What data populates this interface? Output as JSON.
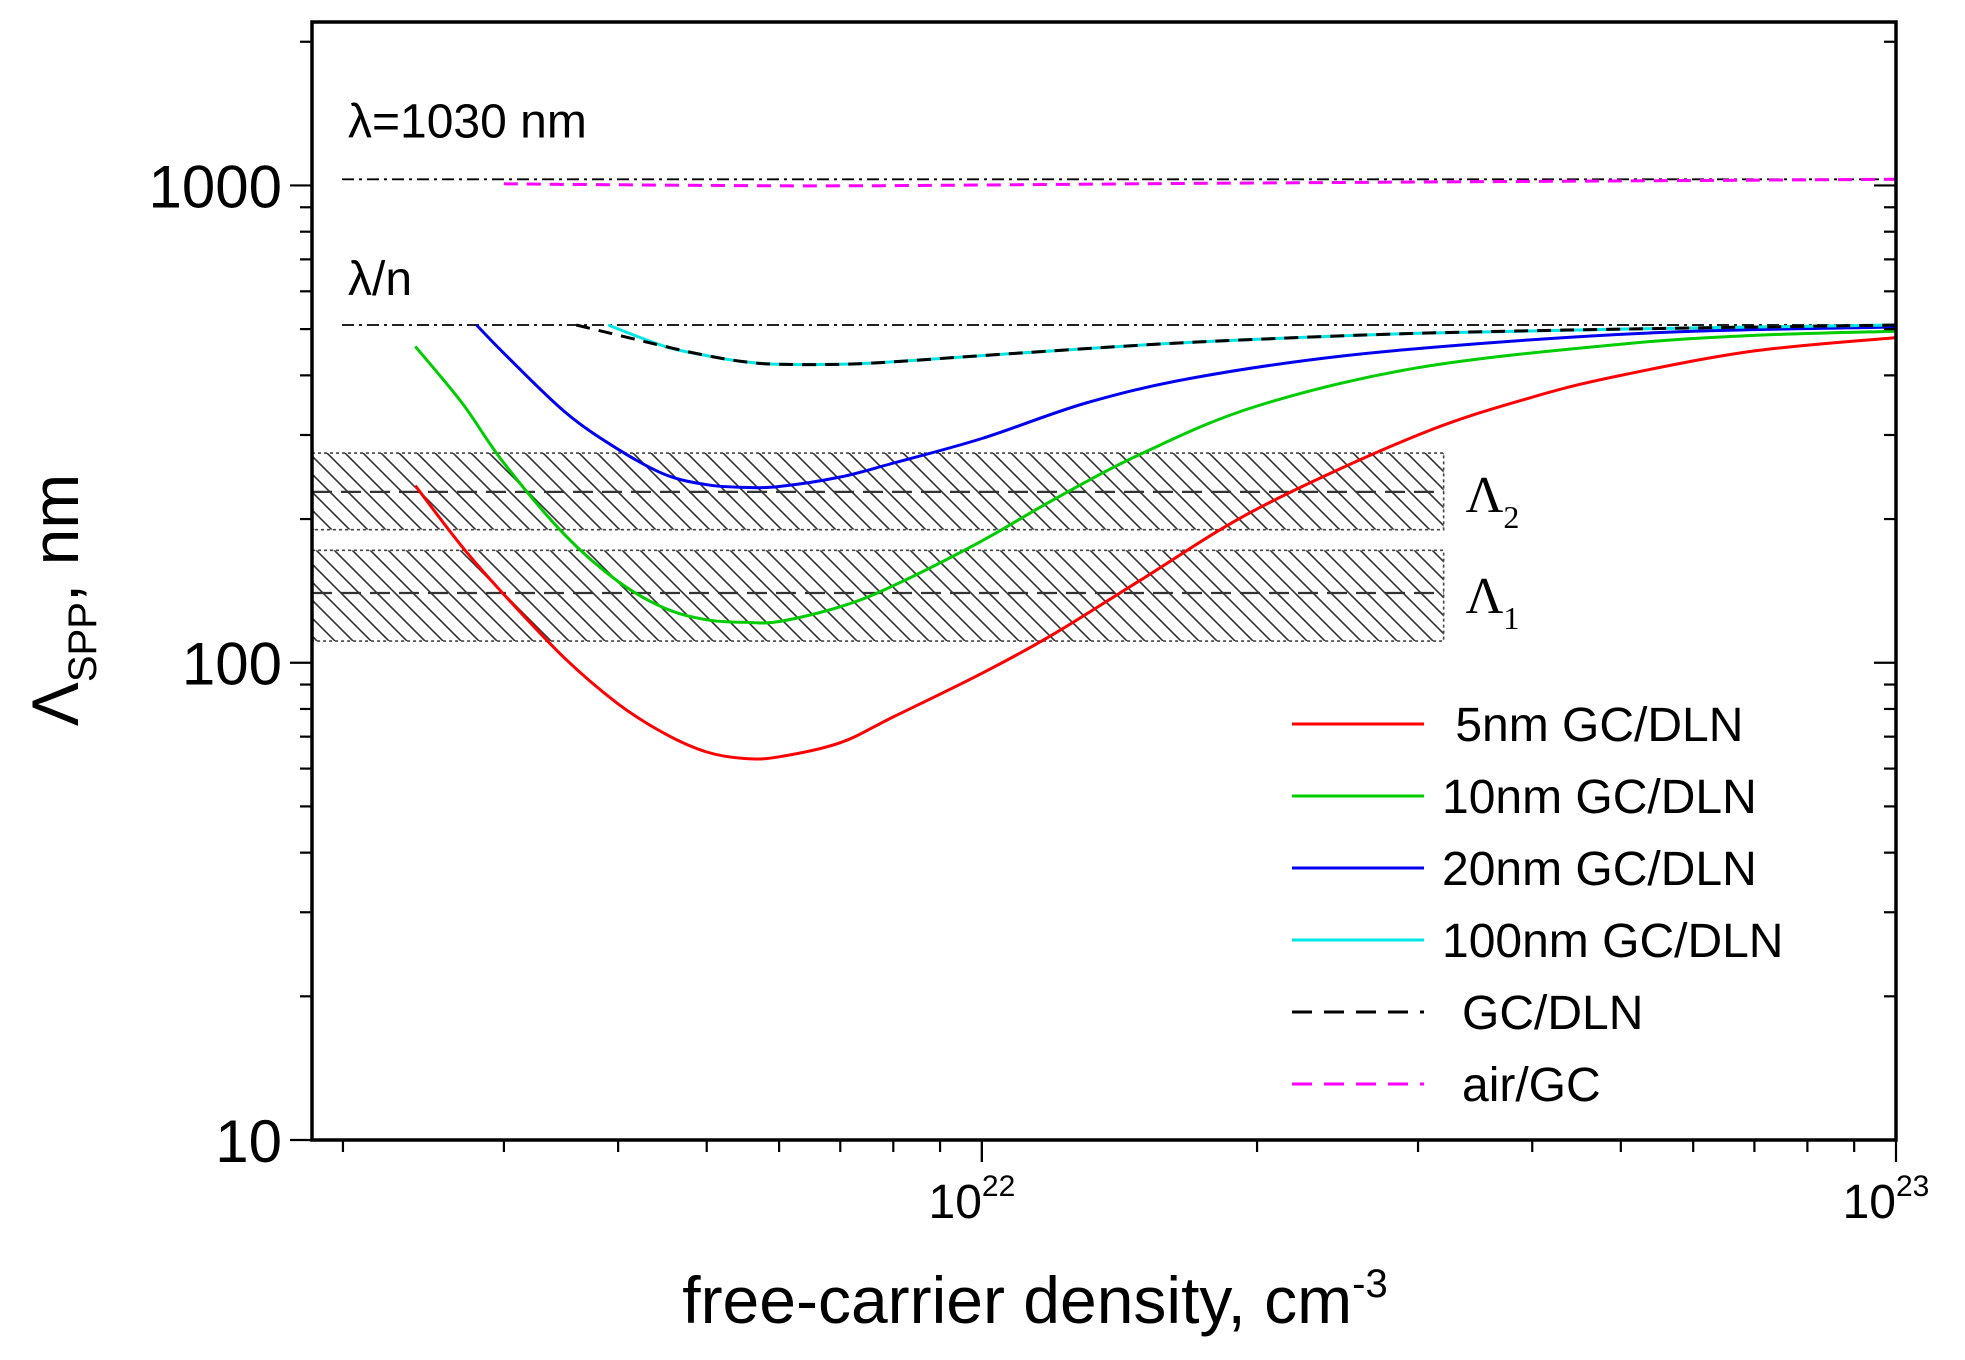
{
  "chart_data": {
    "type": "line",
    "xscale": "log",
    "yscale": "log",
    "xlim": [
      1.85e+21,
      1e+23
    ],
    "ylim": [
      10,
      2200
    ],
    "xlabel": "free-carrier density, cm",
    "xlabel_sup": "-3",
    "ylabel_main": "Λ",
    "ylabel_sub": "SPP",
    "ylabel_rest": ", nm",
    "x_ticks": [
      {
        "value": 1e+22,
        "base": "10",
        "exp": "22"
      },
      {
        "value": 1e+23,
        "base": "10",
        "exp": "23"
      }
    ],
    "y_ticks": [
      {
        "value": 10,
        "label": "10"
      },
      {
        "value": 100,
        "label": "100"
      },
      {
        "value": 1000,
        "label": "1000"
      }
    ],
    "reference_lines": [
      {
        "name": "lambda",
        "label": "λ=1030 nm",
        "y": 1030
      },
      {
        "name": "lambda-over-n",
        "label": "λ/n",
        "y": 510
      }
    ],
    "bands": [
      {
        "name": "Lambda2",
        "label_main": "Λ",
        "label_sub": "2",
        "center": 228,
        "low": 190,
        "high": 275,
        "x_end": 3.2e+22
      },
      {
        "name": "Lambda1",
        "label_main": "Λ",
        "label_sub": "1",
        "center": 140,
        "low": 111,
        "high": 172,
        "x_end": 3.2e+22
      }
    ],
    "series": [
      {
        "name": " 5nm GC/DLN",
        "color": "#ff0000",
        "dash": "solid",
        "x": [
          2.4e+21,
          2.7e+21,
          3e+21,
          3.5e+21,
          4e+21,
          4.5e+21,
          5e+21,
          5.5e+21,
          6e+21,
          7e+21,
          8e+21,
          1e+22,
          1.2e+22,
          1.5e+22,
          2e+22,
          3e+22,
          4e+22,
          5e+22,
          7e+22,
          1e+23
        ],
        "y": [
          235,
          175,
          139,
          102,
          82,
          71,
          65,
          63,
          63.5,
          68,
          77,
          95,
          115,
          150,
          210,
          300,
          360,
          400,
          450,
          480
        ]
      },
      {
        "name": "10nm GC/DLN",
        "color": "#00cc00",
        "dash": "solid",
        "x": [
          2.4e+21,
          2.7e+21,
          3e+21,
          3.5e+21,
          4e+21,
          4.5e+21,
          5e+21,
          5.5e+21,
          6e+21,
          7e+21,
          8e+21,
          1e+22,
          1.2e+22,
          1.5e+22,
          2e+22,
          3e+22,
          5e+22,
          7e+22,
          1e+23
        ],
        "y": [
          460,
          350,
          262,
          185,
          148,
          130,
          123,
          121.5,
          122,
          131,
          145,
          180,
          220,
          275,
          345,
          415,
          465,
          485,
          495
        ]
      },
      {
        "name": "20nm GC/DLN",
        "color": "#0000ee",
        "dash": "solid",
        "x": [
          2.8e+21,
          3e+21,
          3.5e+21,
          4e+21,
          4.5e+21,
          5e+21,
          5.5e+21,
          6e+21,
          7e+21,
          8e+21,
          1e+22,
          1.3e+22,
          1.7e+22,
          2.5e+22,
          4e+22,
          6e+22,
          1e+23
        ],
        "y": [
          510,
          445,
          335,
          280,
          248,
          236,
          233,
          234,
          245,
          262,
          295,
          350,
          395,
          440,
          475,
          495,
          505
        ]
      },
      {
        "name": "100nm GC/DLN",
        "color": "#00e5e5",
        "dash": "solid",
        "x": [
          3.9e+21,
          4.5e+21,
          5e+21,
          5.5e+21,
          6e+21,
          7e+21,
          8e+21,
          1e+22,
          1.5e+22,
          2e+22,
          3e+22,
          5e+22,
          1e+23
        ],
        "y": [
          510,
          460,
          440,
          427,
          422,
          422,
          427,
          440,
          463,
          476,
          490,
          500,
          510
        ]
      },
      {
        "name": "GC/DLN",
        "color": "#000000",
        "dash": "dashed",
        "x": [
          3.6e+21,
          4.5e+21,
          5e+21,
          5.5e+21,
          6e+21,
          7e+21,
          8e+21,
          1e+22,
          1.5e+22,
          2e+22,
          3e+22,
          5e+22,
          1e+23
        ],
        "y": [
          510,
          460,
          440,
          427,
          422,
          422,
          427,
          440,
          463,
          476,
          490,
          500,
          510
        ]
      },
      {
        "name": "air/GC",
        "color": "#ff00ff",
        "dash": "dashed",
        "x": [
          3e+21,
          5e+21,
          7e+21,
          1e+22,
          2e+22,
          5e+22,
          1e+23
        ],
        "y": [
          1008,
          1000,
          998,
          1002,
          1012,
          1022,
          1030
        ]
      }
    ],
    "legend": {
      "placement": "lower-right"
    }
  }
}
